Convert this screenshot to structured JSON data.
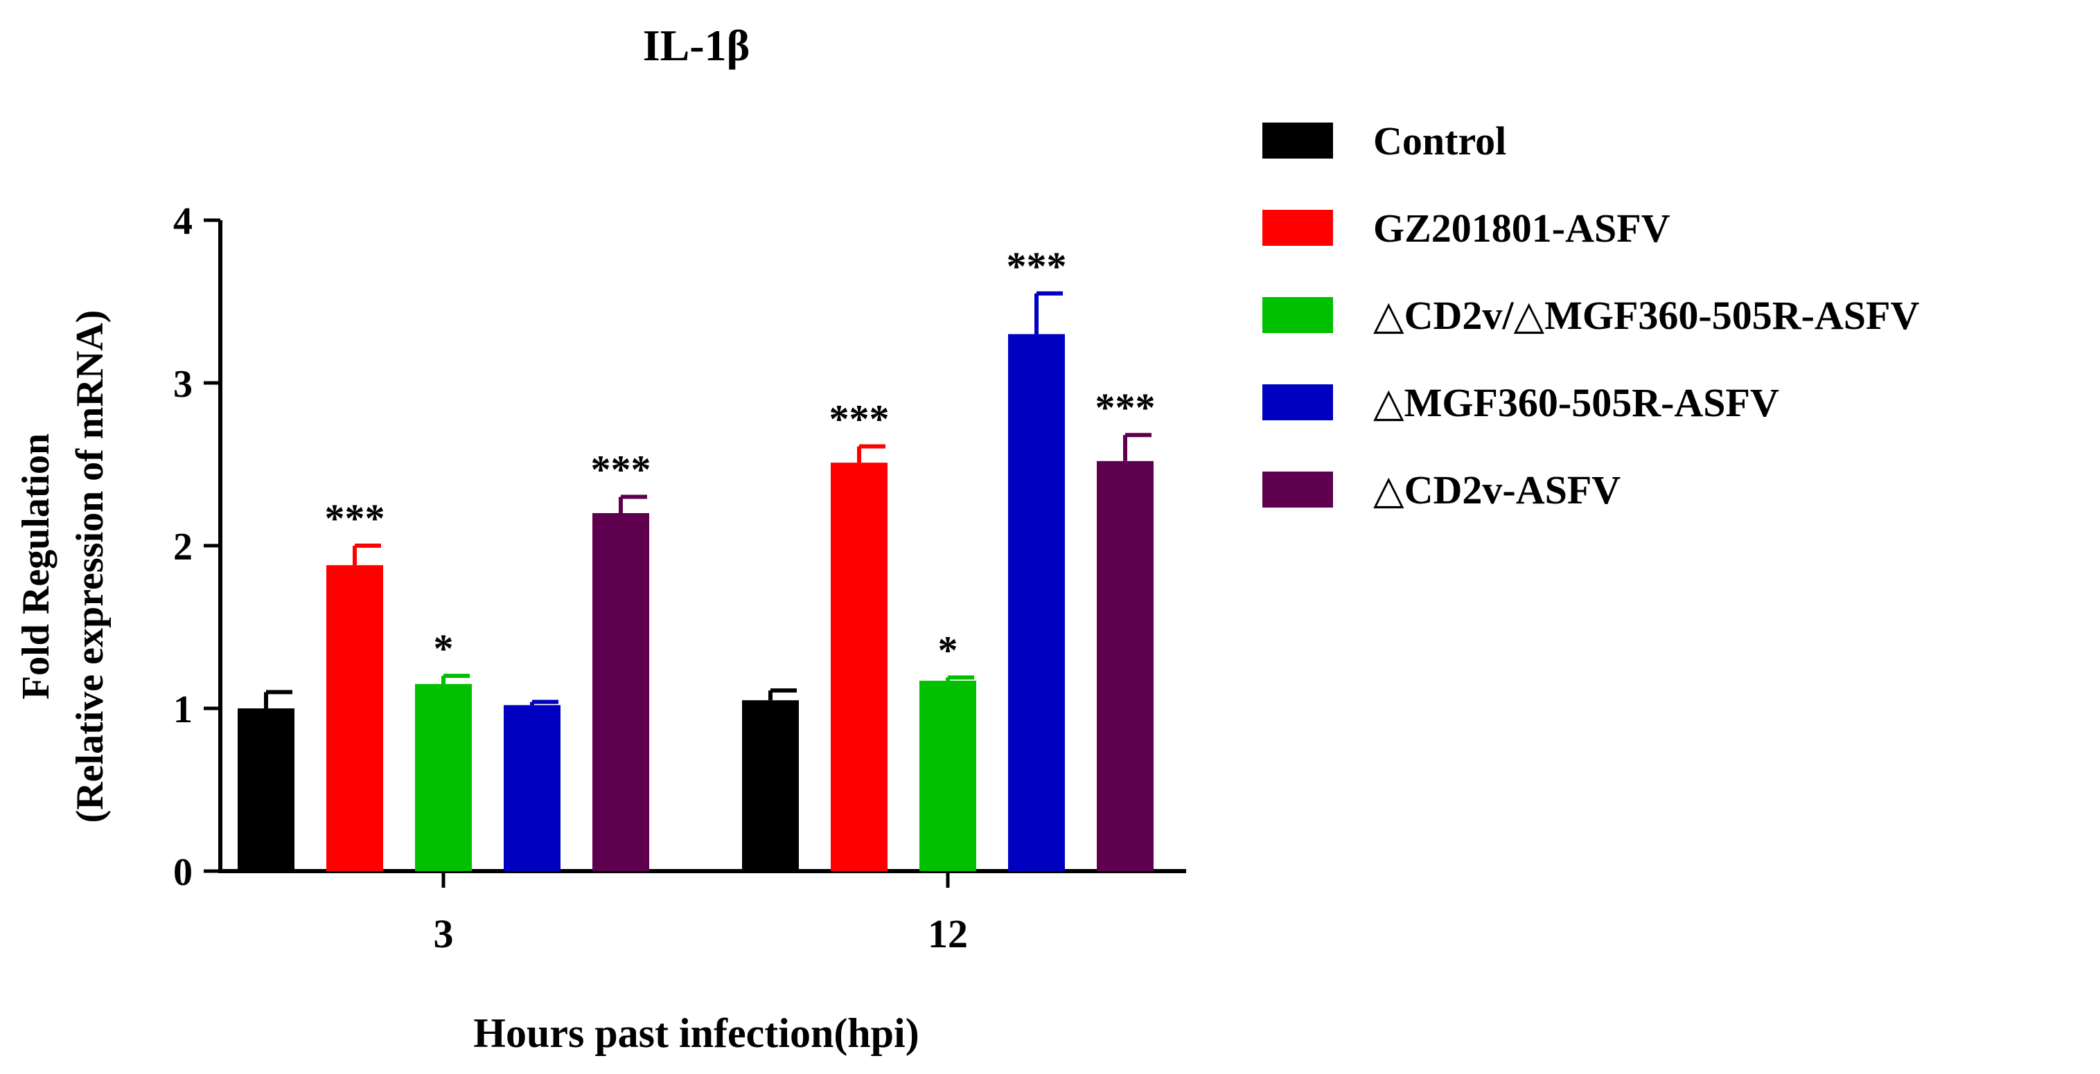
{
  "chart_data": {
    "type": "bar",
    "title": "IL-1β",
    "xlabel": "Hours past infection(hpi)",
    "ylabel_line1": "Fold Regulation",
    "ylabel_line2": "(Relative expression of mRNA)",
    "ylim": [
      0,
      4
    ],
    "yticks": [
      0,
      1,
      2,
      3,
      4
    ],
    "categories": [
      "3",
      "12"
    ],
    "legend_position": "right",
    "series": [
      {
        "name": "Control",
        "color": "#000000",
        "values": [
          1.0,
          1.05
        ],
        "errors": [
          0.1,
          0.06
        ],
        "significance": [
          "",
          ""
        ]
      },
      {
        "name": "GZ201801-ASFV",
        "color": "#ff0000",
        "values": [
          1.88,
          2.51
        ],
        "errors": [
          0.12,
          0.1
        ],
        "significance": [
          "***",
          "***"
        ]
      },
      {
        "name": "△CD2v/△MGF360-505R-ASFV",
        "color": "#00c000",
        "values": [
          1.15,
          1.17
        ],
        "errors": [
          0.05,
          0.02
        ],
        "significance": [
          "*",
          "*"
        ]
      },
      {
        "name": "△MGF360-505R-ASFV",
        "color": "#0000c0",
        "values": [
          1.02,
          3.3
        ],
        "errors": [
          0.02,
          0.25
        ],
        "significance": [
          "",
          "***"
        ]
      },
      {
        "name": "△CD2v-ASFV",
        "color": "#5f004e",
        "values": [
          2.2,
          2.52
        ],
        "errors": [
          0.1,
          0.16
        ],
        "significance": [
          "***",
          "***"
        ]
      }
    ]
  }
}
